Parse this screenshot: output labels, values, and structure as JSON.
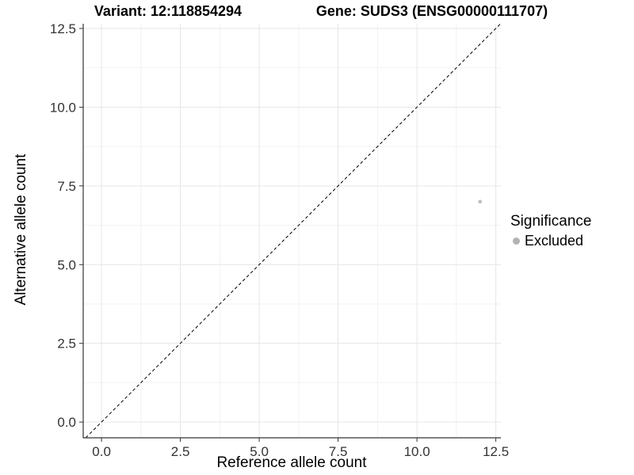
{
  "chart_data": {
    "type": "scatter",
    "titles": [
      "Variant: 12:118854294",
      "Gene: SUDS3 (ENSG00000111707)"
    ],
    "xlabel": "Reference allele count",
    "ylabel": "Alternative allele count",
    "xlim": [
      -0.58,
      12.66
    ],
    "ylim": [
      -0.5,
      12.65
    ],
    "x_ticks": [
      0.0,
      2.5,
      5.0,
      7.5,
      10.0,
      12.5
    ],
    "x_tick_labels": [
      "0.0",
      "2.5",
      "5.0",
      "7.5",
      "10.0",
      "12.5"
    ],
    "y_ticks": [
      0.0,
      2.5,
      5.0,
      7.5,
      10.0,
      12.5
    ],
    "y_tick_labels": [
      "0.0",
      "2.5",
      "5.0",
      "7.5",
      "10.0",
      "12.5"
    ],
    "minor_ticks": [
      1.25,
      3.75,
      6.25,
      8.75,
      11.25
    ],
    "grid": true,
    "identity_line": {
      "slope": 1,
      "intercept": 0,
      "linetype": "dashed",
      "color": "#000000"
    },
    "points": [
      {
        "x": 12,
        "y": 7,
        "significance": "Excluded",
        "color": "#bdbdbd",
        "radius": 2.3
      }
    ],
    "legend": {
      "position": "right",
      "title": "Significance",
      "items": [
        {
          "label": "Excluded",
          "color": "#b3b3b3"
        }
      ]
    },
    "colors": {
      "background": "#ffffff",
      "grid_major": "#e6e6e6",
      "grid_minor": "#f2f2f2",
      "axis_line": "#333333",
      "tick_label": "#333333"
    }
  }
}
